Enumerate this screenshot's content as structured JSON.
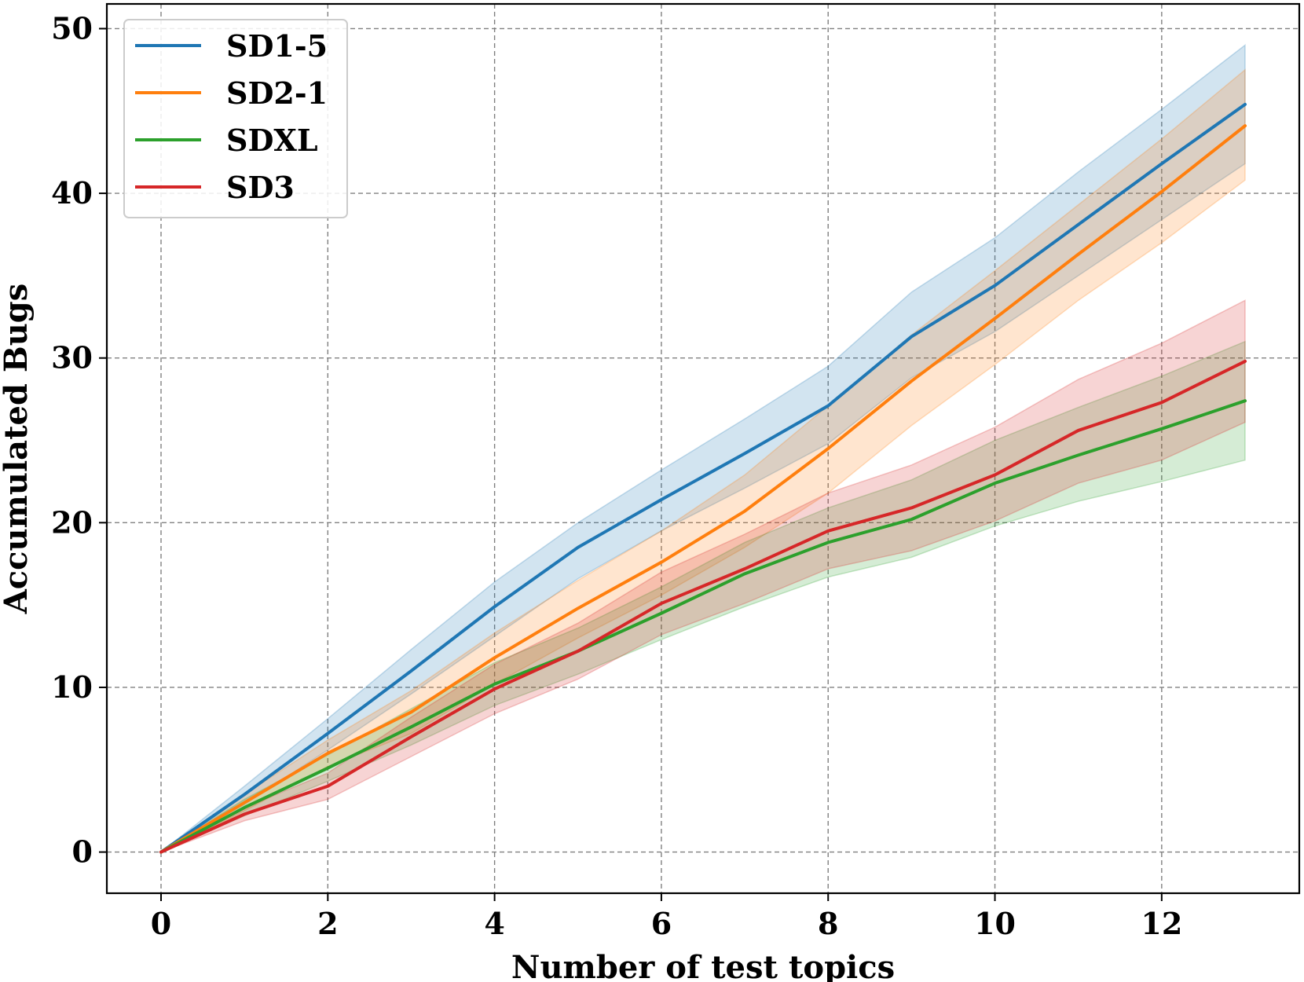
{
  "chart_data": {
    "type": "line",
    "title": "",
    "xlabel": "Number of test topics",
    "ylabel": "Accumulated Bugs",
    "xlim": [
      -0.65,
      13.65
    ],
    "ylim": [
      -2.5,
      51.5
    ],
    "xticks": [
      0,
      2,
      4,
      6,
      8,
      10,
      12
    ],
    "yticks": [
      0,
      10,
      20,
      30,
      40,
      50
    ],
    "grid": true,
    "legend_position": "top-left",
    "x": [
      0,
      1,
      2,
      3,
      4,
      5,
      6,
      7,
      8,
      9,
      10,
      11,
      12,
      13
    ],
    "series": [
      {
        "name": "SD1-5",
        "color": "#1f77b4",
        "values": [
          0,
          3.5,
          7.2,
          11.0,
          14.9,
          18.5,
          21.4,
          24.2,
          27.1,
          31.3,
          34.4,
          38.1,
          41.8,
          45.4
        ],
        "lower": [
          0,
          2.9,
          6.2,
          9.6,
          13.1,
          16.6,
          19.5,
          22.1,
          24.8,
          28.8,
          31.6,
          35.0,
          38.4,
          41.8
        ],
        "upper": [
          0,
          4.0,
          8.1,
          12.3,
          16.4,
          20.0,
          23.2,
          26.3,
          29.5,
          34.0,
          37.3,
          41.3,
          45.1,
          49.0
        ]
      },
      {
        "name": "SD2-1",
        "color": "#ff7f0e",
        "values": [
          0,
          3.0,
          6.0,
          8.5,
          11.8,
          14.8,
          17.6,
          20.7,
          24.5,
          28.6,
          32.4,
          36.3,
          40.1,
          44.1
        ],
        "lower": [
          0,
          2.5,
          5.2,
          7.2,
          10.2,
          13.0,
          15.6,
          18.5,
          21.8,
          25.9,
          29.6,
          33.5,
          37.0,
          40.8
        ],
        "upper": [
          0,
          3.5,
          6.8,
          9.8,
          13.3,
          16.5,
          19.5,
          22.9,
          27.1,
          31.4,
          35.3,
          39.3,
          43.3,
          47.5
        ]
      },
      {
        "name": "SDXL",
        "color": "#2ca02c",
        "values": [
          0,
          2.7,
          5.1,
          7.6,
          10.2,
          12.2,
          14.5,
          16.9,
          18.8,
          20.2,
          22.4,
          24.1,
          25.7,
          27.4
        ],
        "lower": [
          0,
          2.2,
          4.3,
          6.5,
          8.9,
          10.8,
          12.9,
          14.9,
          16.7,
          17.9,
          19.8,
          21.3,
          22.5,
          23.8
        ],
        "upper": [
          0,
          3.2,
          5.9,
          8.7,
          11.5,
          13.6,
          16.1,
          18.8,
          20.9,
          22.6,
          25.0,
          27.0,
          28.9,
          31.0
        ]
      },
      {
        "name": "SD3",
        "color": "#d62728",
        "values": [
          0,
          2.3,
          4.0,
          7.0,
          9.9,
          12.2,
          15.1,
          17.2,
          19.5,
          20.9,
          22.9,
          25.6,
          27.3,
          29.8
        ],
        "lower": [
          0,
          1.9,
          3.2,
          5.8,
          8.4,
          10.5,
          13.2,
          15.1,
          17.2,
          18.3,
          20.1,
          22.4,
          23.8,
          26.1
        ],
        "upper": [
          0,
          2.7,
          4.8,
          8.2,
          11.4,
          13.9,
          17.0,
          19.3,
          21.8,
          23.5,
          25.8,
          28.7,
          30.9,
          33.5
        ]
      }
    ]
  }
}
